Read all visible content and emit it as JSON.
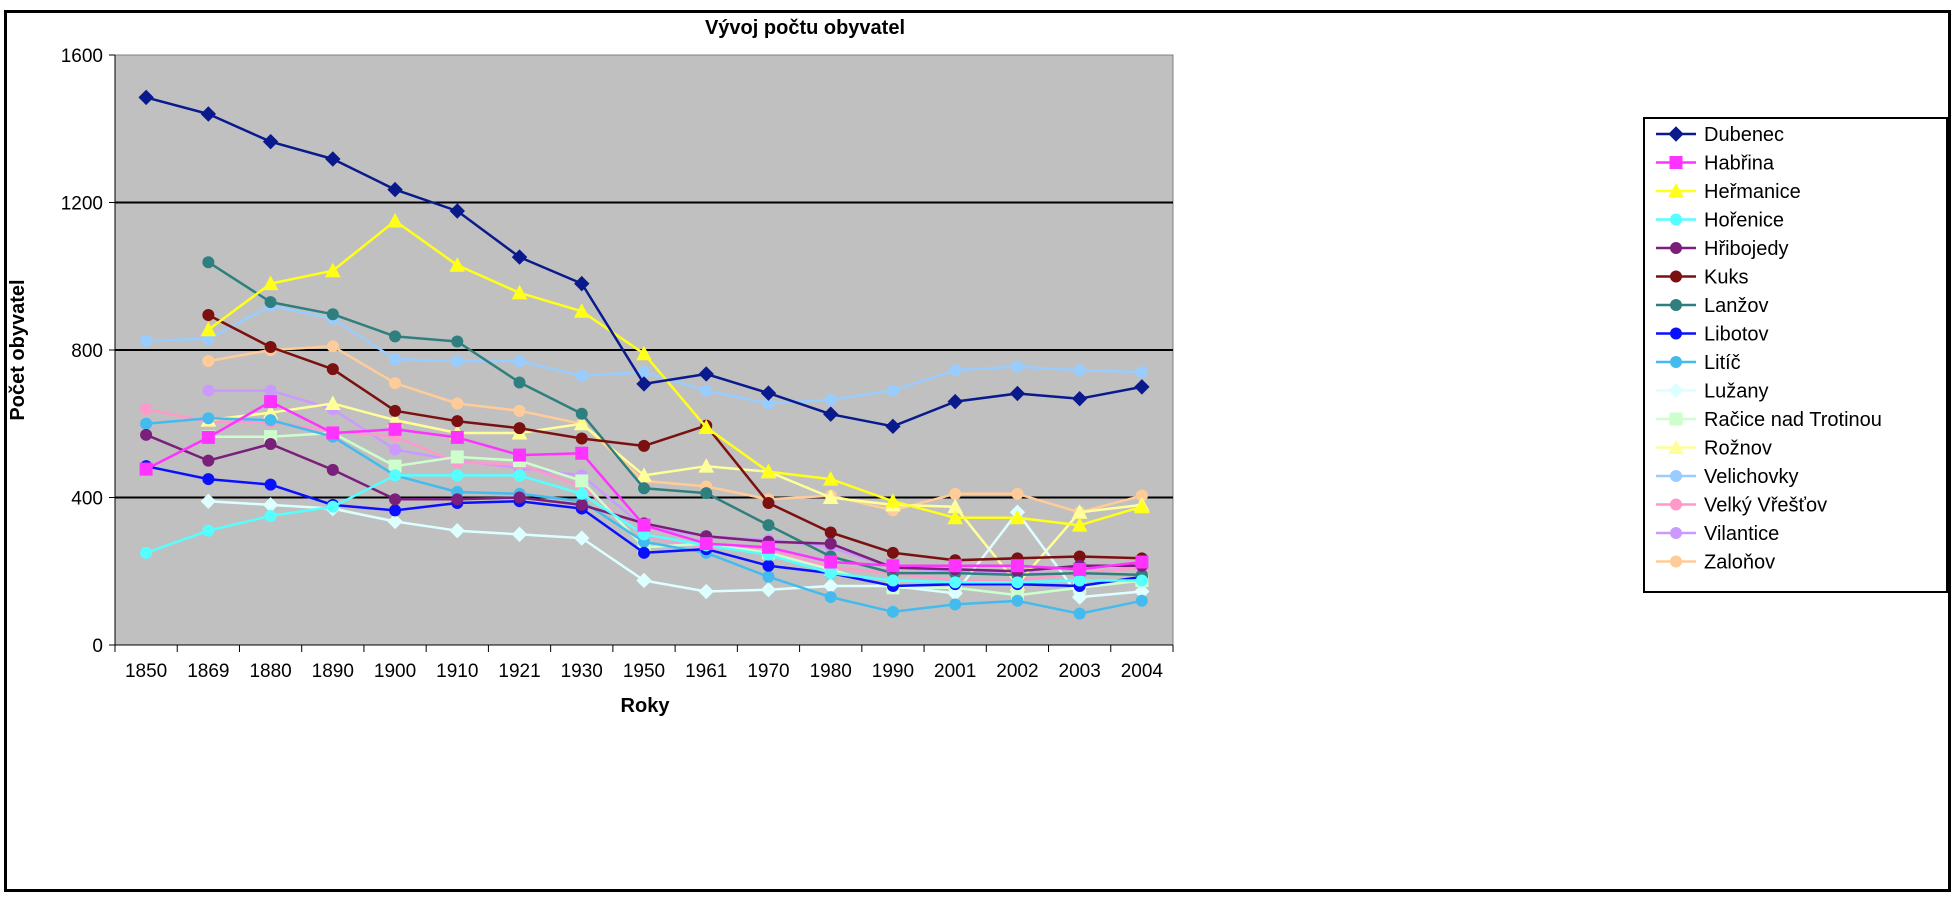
{
  "chart_data": {
    "type": "line",
    "title": "Vývoj počtu obyvatel",
    "xlabel": "Roky",
    "ylabel": "Počet obyvatel",
    "categories": [
      "1850",
      "1869",
      "1880",
      "1890",
      "1900",
      "1910",
      "1921",
      "1930",
      "1950",
      "1961",
      "1970",
      "1980",
      "1990",
      "2001",
      "2002",
      "2003",
      "2004"
    ],
    "ylim": [
      0,
      1600
    ],
    "yticks": [
      0,
      400,
      800,
      1200,
      1600
    ],
    "grid": "horizontal",
    "legend_position": "right",
    "series": [
      {
        "name": "Dubenec",
        "color": "#0a1a8c",
        "marker": "diamond",
        "values": [
          1485,
          1440,
          1365,
          1318,
          1235,
          1177,
          1052,
          980,
          708,
          735,
          683,
          626,
          593,
          660,
          682,
          668,
          700
        ]
      },
      {
        "name": "Habřina",
        "color": "#ff33ff",
        "marker": "square",
        "values": [
          477,
          563,
          660,
          575,
          585,
          563,
          515,
          520,
          325,
          275,
          265,
          225,
          215,
          215,
          215,
          205,
          225
        ]
      },
      {
        "name": "Heřmanice",
        "color": "#ffff1a",
        "marker": "triangle",
        "values": [
          null,
          855,
          980,
          1015,
          1150,
          1030,
          955,
          905,
          790,
          590,
          470,
          450,
          390,
          345,
          345,
          325,
          375
        ]
      },
      {
        "name": "Hořenice",
        "color": "#55ffff",
        "marker": "circle",
        "values": [
          250,
          310,
          350,
          375,
          460,
          460,
          460,
          410,
          300,
          270,
          245,
          195,
          175,
          170,
          170,
          175,
          175
        ]
      },
      {
        "name": "Hřibojedy",
        "color": "#7a1f7a",
        "marker": "circle",
        "values": [
          570,
          500,
          545,
          475,
          395,
          395,
          400,
          380,
          330,
          295,
          280,
          275,
          210,
          205,
          200,
          215,
          215
        ]
      },
      {
        "name": "Kuks",
        "color": "#7a1010",
        "marker": "circle",
        "values": [
          null,
          895,
          808,
          748,
          635,
          607,
          588,
          560,
          540,
          595,
          385,
          305,
          250,
          230,
          235,
          240,
          235
        ]
      },
      {
        "name": "Lanžov",
        "color": "#2f7f7f",
        "marker": "circle",
        "values": [
          null,
          1038,
          930,
          897,
          837,
          823,
          712,
          627,
          425,
          412,
          325,
          240,
          195,
          195,
          190,
          195,
          190
        ]
      },
      {
        "name": "Libotov",
        "color": "#0a10ff",
        "marker": "circle",
        "values": [
          485,
          450,
          435,
          380,
          365,
          385,
          390,
          370,
          250,
          260,
          215,
          195,
          160,
          165,
          165,
          160,
          185
        ]
      },
      {
        "name": "Litíč",
        "color": "#44bbee",
        "marker": "circle",
        "values": [
          600,
          615,
          610,
          565,
          460,
          415,
          410,
          390,
          280,
          250,
          185,
          130,
          90,
          110,
          120,
          85,
          120
        ]
      },
      {
        "name": "Lužany",
        "color": "#ddffff",
        "marker": "diamond",
        "values": [
          null,
          390,
          380,
          370,
          335,
          310,
          300,
          290,
          175,
          145,
          150,
          160,
          160,
          140,
          360,
          130,
          145
        ]
      },
      {
        "name": "Račice nad Trotinou",
        "color": "#ccffcc",
        "marker": "square",
        "values": [
          null,
          565,
          565,
          575,
          485,
          510,
          500,
          445,
          265,
          275,
          250,
          205,
          155,
          155,
          135,
          155,
          175
        ]
      },
      {
        "name": "Rožnov",
        "color": "#ffff99",
        "marker": "triangle",
        "values": [
          null,
          610,
          630,
          655,
          610,
          575,
          575,
          600,
          460,
          485,
          470,
          400,
          380,
          375,
          165,
          360,
          380
        ]
      },
      {
        "name": "Velichovky",
        "color": "#99ccff",
        "marker": "circle",
        "values": [
          825,
          830,
          920,
          885,
          775,
          770,
          770,
          730,
          740,
          690,
          655,
          665,
          690,
          745,
          755,
          745,
          740
        ]
      },
      {
        "name": "Velký Vřešťov",
        "color": "#ff99cc",
        "marker": "circle",
        "values": [
          640,
          605,
          605,
          580,
          565,
          495,
          490,
          430,
          295,
          265,
          260,
          210,
          195,
          175,
          175,
          195,
          210
        ]
      },
      {
        "name": "Vilantice",
        "color": "#cc99ff",
        "marker": "circle",
        "values": [
          null,
          690,
          690,
          640,
          530,
          500,
          480,
          460,
          320,
          295,
          285,
          265,
          210,
          200,
          195,
          190,
          215
        ]
      },
      {
        "name": "Zaloňov",
        "color": "#ffcc99",
        "marker": "circle",
        "values": [
          null,
          770,
          800,
          810,
          710,
          655,
          635,
          600,
          445,
          430,
          395,
          405,
          365,
          410,
          410,
          360,
          405
        ]
      }
    ]
  }
}
